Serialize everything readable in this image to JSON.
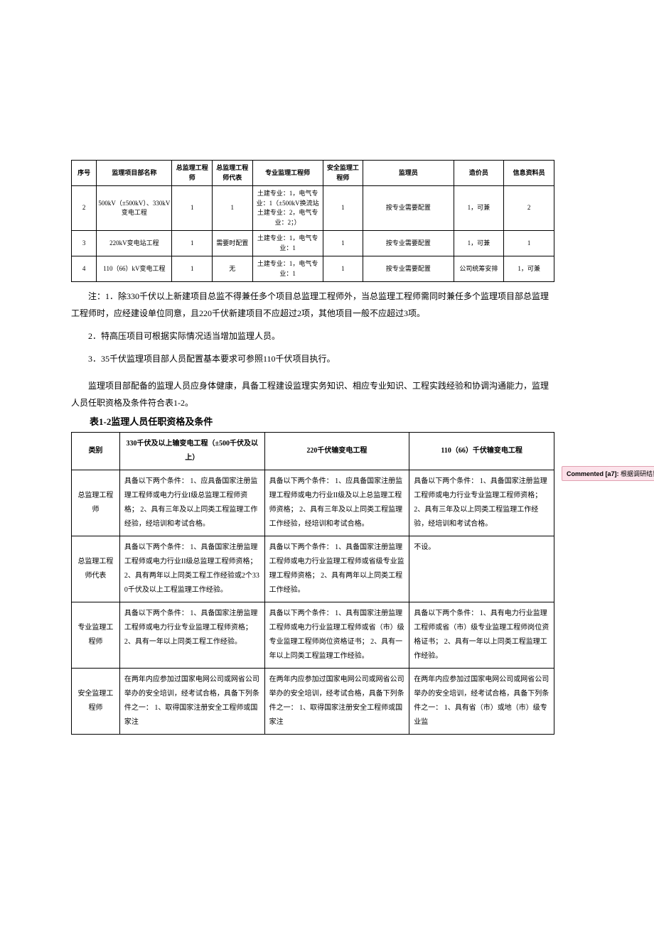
{
  "table1": {
    "col_widths_pct": [
      5,
      15,
      8,
      8,
      14,
      8,
      18,
      10,
      10
    ],
    "headers": [
      "序号",
      "监理项目部名称",
      "总监理工程师",
      "总监理工程师代表",
      "专业监理工程师",
      "安全监理工程师",
      "监理员",
      "造价员",
      "信息资料员"
    ],
    "rows": [
      {
        "cells": [
          "2",
          "500kV（±500kV）、330kV变电工程",
          "1",
          "1",
          "土建专业：1，电气专业：1（±500kV换流站土建专业：2，电气专业：2；）",
          "1",
          "按专业需要配置",
          "1，可兼",
          "2"
        ]
      },
      {
        "cells": [
          "3",
          "220kV变电站工程",
          "1",
          "需要时配置",
          "土建专业：1，电气专业：1",
          "1",
          "按专业需要配置",
          "1，可兼",
          "1"
        ]
      },
      {
        "cells": [
          "4",
          "110（66）kV变电工程",
          "1",
          "无",
          "土建专业：1，电气专业：1",
          "1",
          "按专业需要配置",
          "公司统筹安排",
          "1，可兼"
        ]
      }
    ]
  },
  "notes": {
    "n1": "注：1．除330千伏以上新建项目总监不得兼任多个项目总监理工程师外，当总监理工程师需同时兼任多个监理项目部总监理工程师时，应经建设单位同意，且220千伏新建项目不应超过2项，其他项目一般不应超过3项。",
    "n2": "2．特高压项目可根据实际情况适当增加监理人员。",
    "n3": "3．35千伏监理项目部人员配置基本要求可参照110千伏项目执行。"
  },
  "para1": "监理项目部配备的监理人员应身体健康，具备工程建设监理实务知识、相应专业知识、工程实践经验和协调沟通能力，监理人员任职资格及条件符合表1-2。",
  "subtitle": "表1-2监理人员任职资格及条件",
  "table2": {
    "col_widths_pct": [
      10,
      30,
      30,
      30
    ],
    "headers": [
      "类别",
      "330千伏及以上输变电工程（±500千伏及以上）",
      "220千伏输变电工程",
      "110（66）千伏输变电工程"
    ],
    "rows": [
      {
        "cat": "总监理工程师",
        "c1": "具备以下两个条件：\n1、应具备国家注册监理工程师或电力行业I级总监理工程师资格；\n2、具有三年及以上同类工程监理工作经验，经培训和考试合格。",
        "c2": "具备以下两个条件：\n1、应具备国家注册监理工程师或电力行业II级及以上总监理工程师资格；\n2、具有三年及以上同类工程监理工作经验，经培训和考试合格。",
        "c3": "具备以下两个条件：\n1、具备国家注册监理工程师或电力行业专业监理工程师资格；\n2、具有三年及以上同类工程监理工作经验，经培训和考试合格。"
      },
      {
        "cat": "总监理工程师代表",
        "c1": "具备以下两个条件：\n1、具备国家注册监理工程师或电力行业II级总监理工程师资格；\n2、具有两年以上同类工程工作经验或2个330千伏及以上工程监理工作经验。",
        "c2": "具备以下两个条件：\n1、具备国家注册监理工程师或电力行业监理工程师或省级专业监理工程师资格；\n2、具有两年以上同类工程工作经验。",
        "c3": "不设。"
      },
      {
        "cat": "专业监理工程师",
        "c1": "具备以下两个条件：\n1、具备国家注册监理工程师或电力行业专业监理工程师资格；\n2、具有一年以上同类工程工作经验。",
        "c2": "具备以下两个条件：\n1、具有国家注册监理工程师或电力行业监理工程师或省（市）级专业监理工程师岗位资格证书；\n2、具有一年以上同类工程监理工作经验。",
        "c3": "具备以下两个条件：\n1、具有电力行业监理工程师或省（市）级专业监理工程师岗位资格证书；\n2、具有一年以上同类工程监理工作经验。"
      },
      {
        "cat": "安全监理工程师",
        "c1": "在两年内应参加过国家电网公司或网省公司举办的安全培训，经考试合格，具备下列条件之一：\n1、取得国家注册安全工程师或国家注",
        "c2": "在两年内应参加过国家电网公司或网省公司举办的安全培训，经考试合格，具备下列条件之一：\n1、取得国家注册安全工程师或国家注",
        "c3": "在两年内应参加过国家电网公司或网省公司举办的安全培训，经考试合格，具备下列条件之一：\n1、具有省（市）或地（市）级专业监"
      }
    ]
  },
  "comment": {
    "label": "Commented [a7]:",
    "text": " 根据调研结果调整。"
  }
}
